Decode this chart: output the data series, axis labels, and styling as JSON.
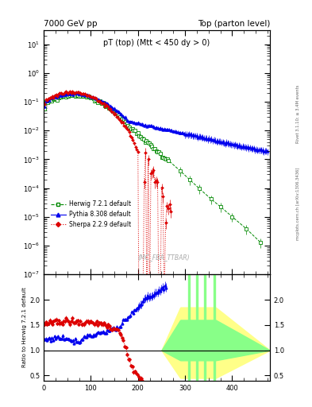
{
  "title_left": "7000 GeV pp",
  "title_right": "Top (parton level)",
  "plot_title": "pT (top) (Mtt < 450 dy > 0)",
  "watermark": "(MC_FBA_TTBAR)",
  "right_label_top": "Rivet 3.1.10; ≥ 3.4M events",
  "right_label_bottom": "mcplots.cern.ch [arXiv:1306.3436]",
  "ylabel_ratio": "Ratio to Herwig 7.2.1 default",
  "xlim": [
    0,
    480
  ],
  "ylim_main": [
    1e-07,
    30
  ],
  "ylim_ratio": [
    0.4,
    2.5
  ],
  "ratio_yticks": [
    0.5,
    1.0,
    1.5,
    2.0
  ],
  "legend": [
    {
      "label": "Herwig 7.2.1 default",
      "color": "#008800",
      "marker": "s",
      "linestyle": "--"
    },
    {
      "label": "Pythia 8.308 default",
      "color": "#0000ee",
      "marker": "^",
      "linestyle": "-"
    },
    {
      "label": "Sherpa 2.2.9 default",
      "color": "#dd0000",
      "marker": "D",
      "linestyle": ":"
    }
  ],
  "background_color": "#ffffff",
  "band_yellow": "#ffff88",
  "band_green": "#88ff88"
}
